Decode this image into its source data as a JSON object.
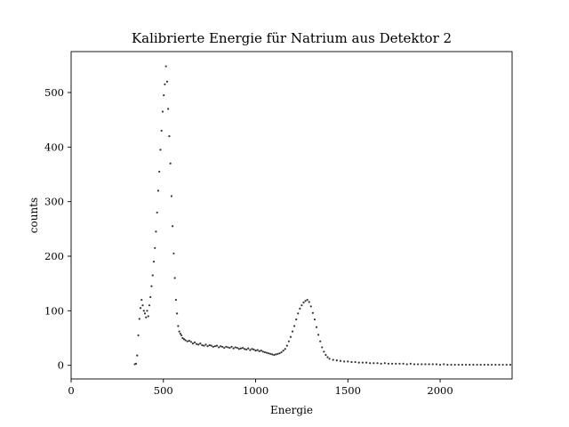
{
  "chart_data": {
    "type": "scatter",
    "title": "Kalibrierte Energie für Natrium aus Detektor 2",
    "xlabel": "Energie",
    "ylabel": "counts",
    "xlim": [
      0,
      2390
    ],
    "ylim": [
      -25,
      575
    ],
    "x_ticks": [
      0,
      500,
      1000,
      1500,
      2000
    ],
    "y_ticks": [
      0,
      100,
      200,
      300,
      400,
      500
    ],
    "grid": false,
    "marker_color": "#333333",
    "series": [
      {
        "points": [
          [
            345,
            2
          ],
          [
            352,
            3
          ],
          [
            358,
            18
          ],
          [
            364,
            55
          ],
          [
            370,
            85
          ],
          [
            376,
            105
          ],
          [
            382,
            120
          ],
          [
            388,
            110
          ],
          [
            394,
            100
          ],
          [
            400,
            95
          ],
          [
            406,
            88
          ],
          [
            412,
            100
          ],
          [
            418,
            90
          ],
          [
            424,
            110
          ],
          [
            430,
            125
          ],
          [
            436,
            145
          ],
          [
            442,
            165
          ],
          [
            448,
            190
          ],
          [
            454,
            215
          ],
          [
            460,
            245
          ],
          [
            466,
            280
          ],
          [
            472,
            320
          ],
          [
            478,
            355
          ],
          [
            484,
            395
          ],
          [
            490,
            430
          ],
          [
            496,
            465
          ],
          [
            502,
            495
          ],
          [
            508,
            515
          ],
          [
            514,
            548
          ],
          [
            520,
            520
          ],
          [
            526,
            470
          ],
          [
            532,
            420
          ],
          [
            538,
            370
          ],
          [
            544,
            310
          ],
          [
            550,
            255
          ],
          [
            556,
            205
          ],
          [
            562,
            160
          ],
          [
            568,
            120
          ],
          [
            574,
            95
          ],
          [
            580,
            72
          ],
          [
            586,
            62
          ],
          [
            592,
            58
          ],
          [
            598,
            55
          ],
          [
            604,
            50
          ],
          [
            612,
            48
          ],
          [
            620,
            46
          ],
          [
            630,
            44
          ],
          [
            640,
            45
          ],
          [
            650,
            43
          ],
          [
            660,
            40
          ],
          [
            670,
            42
          ],
          [
            680,
            39
          ],
          [
            690,
            38
          ],
          [
            700,
            40
          ],
          [
            710,
            37
          ],
          [
            720,
            36
          ],
          [
            730,
            38
          ],
          [
            740,
            35
          ],
          [
            750,
            37
          ],
          [
            760,
            36
          ],
          [
            770,
            34
          ],
          [
            780,
            35
          ],
          [
            790,
            36
          ],
          [
            800,
            33
          ],
          [
            810,
            35
          ],
          [
            820,
            34
          ],
          [
            830,
            32
          ],
          [
            840,
            34
          ],
          [
            850,
            33
          ],
          [
            860,
            32
          ],
          [
            870,
            34
          ],
          [
            880,
            31
          ],
          [
            890,
            33
          ],
          [
            900,
            32
          ],
          [
            910,
            30
          ],
          [
            920,
            31
          ],
          [
            930,
            32
          ],
          [
            940,
            30
          ],
          [
            950,
            29
          ],
          [
            960,
            31
          ],
          [
            970,
            28
          ],
          [
            980,
            30
          ],
          [
            990,
            29
          ],
          [
            1000,
            27
          ],
          [
            1010,
            28
          ],
          [
            1020,
            26
          ],
          [
            1030,
            27
          ],
          [
            1040,
            25
          ],
          [
            1050,
            24
          ],
          [
            1060,
            23
          ],
          [
            1070,
            22
          ],
          [
            1080,
            21
          ],
          [
            1090,
            20
          ],
          [
            1100,
            19
          ],
          [
            1110,
            20
          ],
          [
            1120,
            21
          ],
          [
            1130,
            22
          ],
          [
            1140,
            24
          ],
          [
            1150,
            27
          ],
          [
            1160,
            30
          ],
          [
            1170,
            36
          ],
          [
            1180,
            44
          ],
          [
            1190,
            52
          ],
          [
            1200,
            62
          ],
          [
            1210,
            72
          ],
          [
            1220,
            84
          ],
          [
            1230,
            95
          ],
          [
            1240,
            104
          ],
          [
            1250,
            110
          ],
          [
            1260,
            115
          ],
          [
            1270,
            118
          ],
          [
            1280,
            120
          ],
          [
            1290,
            116
          ],
          [
            1300,
            108
          ],
          [
            1310,
            96
          ],
          [
            1320,
            84
          ],
          [
            1330,
            70
          ],
          [
            1340,
            56
          ],
          [
            1350,
            44
          ],
          [
            1360,
            33
          ],
          [
            1370,
            25
          ],
          [
            1380,
            19
          ],
          [
            1390,
            15
          ],
          [
            1400,
            12
          ],
          [
            1420,
            10
          ],
          [
            1440,
            9
          ],
          [
            1460,
            8
          ],
          [
            1480,
            7
          ],
          [
            1500,
            7
          ],
          [
            1520,
            6
          ],
          [
            1540,
            6
          ],
          [
            1560,
            5
          ],
          [
            1580,
            5
          ],
          [
            1600,
            5
          ],
          [
            1620,
            4
          ],
          [
            1640,
            4
          ],
          [
            1660,
            4
          ],
          [
            1680,
            3
          ],
          [
            1700,
            4
          ],
          [
            1720,
            3
          ],
          [
            1740,
            3
          ],
          [
            1760,
            3
          ],
          [
            1780,
            3
          ],
          [
            1800,
            3
          ],
          [
            1820,
            2
          ],
          [
            1840,
            3
          ],
          [
            1860,
            2
          ],
          [
            1880,
            2
          ],
          [
            1900,
            2
          ],
          [
            1920,
            2
          ],
          [
            1940,
            2
          ],
          [
            1960,
            2
          ],
          [
            1980,
            2
          ],
          [
            2000,
            1
          ],
          [
            2020,
            2
          ],
          [
            2040,
            1
          ],
          [
            2060,
            1
          ],
          [
            2080,
            1
          ],
          [
            2100,
            1
          ],
          [
            2120,
            1
          ],
          [
            2140,
            1
          ],
          [
            2160,
            1
          ],
          [
            2180,
            1
          ],
          [
            2200,
            1
          ],
          [
            2220,
            1
          ],
          [
            2240,
            1
          ],
          [
            2260,
            1
          ],
          [
            2280,
            1
          ],
          [
            2300,
            1
          ],
          [
            2320,
            1
          ],
          [
            2340,
            1
          ],
          [
            2360,
            1
          ],
          [
            2380,
            1
          ]
        ]
      }
    ]
  }
}
